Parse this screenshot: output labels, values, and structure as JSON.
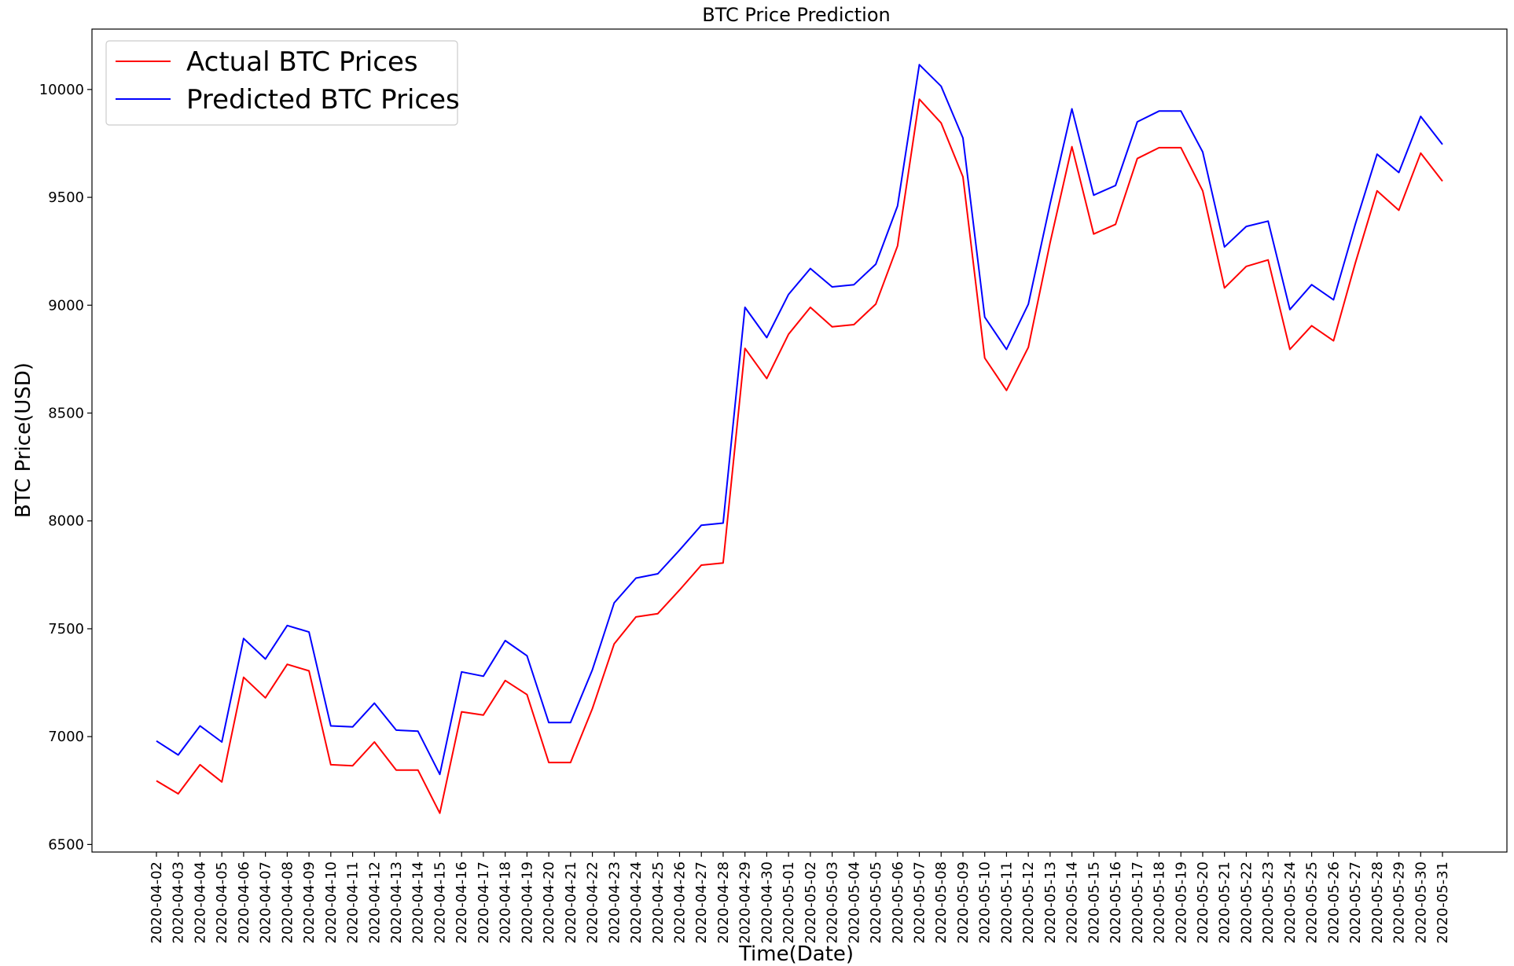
{
  "chart_data": {
    "type": "line",
    "title": "BTC Price Prediction",
    "xlabel": "Time(Date)",
    "ylabel": "BTC Price(USD)",
    "categories": [
      "2020-04-02",
      "2020-04-03",
      "2020-04-04",
      "2020-04-05",
      "2020-04-06",
      "2020-04-07",
      "2020-04-08",
      "2020-04-09",
      "2020-04-10",
      "2020-04-11",
      "2020-04-12",
      "2020-04-13",
      "2020-04-14",
      "2020-04-15",
      "2020-04-16",
      "2020-04-17",
      "2020-04-18",
      "2020-04-19",
      "2020-04-20",
      "2020-04-21",
      "2020-04-22",
      "2020-04-23",
      "2020-04-24",
      "2020-04-25",
      "2020-04-26",
      "2020-04-27",
      "2020-04-28",
      "2020-04-29",
      "2020-04-30",
      "2020-05-01",
      "2020-05-02",
      "2020-05-03",
      "2020-05-04",
      "2020-05-05",
      "2020-05-06",
      "2020-05-07",
      "2020-05-08",
      "2020-05-09",
      "2020-05-10",
      "2020-05-11",
      "2020-05-12",
      "2020-05-13",
      "2020-05-14",
      "2020-05-15",
      "2020-05-16",
      "2020-05-17",
      "2020-05-18",
      "2020-05-19",
      "2020-05-20",
      "2020-05-21",
      "2020-05-22",
      "2020-05-23",
      "2020-05-24",
      "2020-05-25",
      "2020-05-26",
      "2020-05-27",
      "2020-05-28",
      "2020-05-29",
      "2020-05-30",
      "2020-05-31"
    ],
    "yticks": [
      6500,
      7000,
      7500,
      8000,
      8500,
      9000,
      9500,
      10000
    ],
    "ylim": [
      6465,
      10280
    ],
    "grid": false,
    "legend_position": "top-left",
    "series": [
      {
        "name": "Actual BTC Prices",
        "color": "#ff0000",
        "values": [
          6795,
          6735,
          6870,
          6790,
          7275,
          7180,
          7335,
          7305,
          6870,
          6865,
          6975,
          6845,
          6845,
          6645,
          7115,
          7100,
          7260,
          7195,
          6880,
          6880,
          7130,
          7430,
          7555,
          7570,
          7680,
          7795,
          7805,
          8800,
          8660,
          8865,
          8990,
          8900,
          8910,
          9005,
          9275,
          9955,
          9845,
          9595,
          8755,
          8605,
          8805,
          9290,
          9735,
          9330,
          9375,
          9680,
          9730,
          9730,
          9530,
          9080,
          9180,
          9210,
          8795,
          8905,
          8835,
          9195,
          9530,
          9440,
          9705,
          9575
        ]
      },
      {
        "name": "Predicted BTC Prices",
        "color": "#0000ff",
        "values": [
          6980,
          6915,
          7050,
          6975,
          7455,
          7360,
          7515,
          7485,
          7050,
          7045,
          7155,
          7030,
          7025,
          6825,
          7300,
          7280,
          7445,
          7375,
          7065,
          7065,
          7310,
          7620,
          7735,
          7755,
          7865,
          7980,
          7990,
          8990,
          8850,
          9050,
          9170,
          9085,
          9095,
          9190,
          9460,
          10115,
          10015,
          9775,
          8945,
          8795,
          9005,
          9470,
          9910,
          9510,
          9555,
          9850,
          9900,
          9900,
          9710,
          9270,
          9365,
          9390,
          8980,
          9095,
          9025,
          9375,
          9700,
          9615,
          9875,
          9745
        ]
      }
    ]
  }
}
